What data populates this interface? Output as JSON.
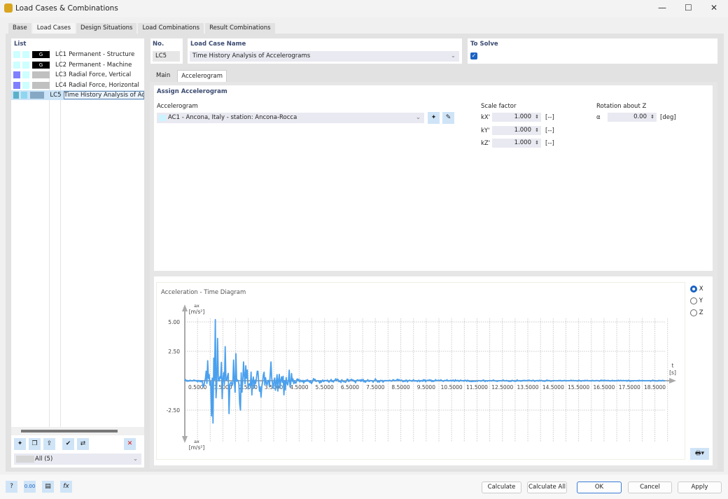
{
  "window": {
    "title": "Load Cases & Combinations"
  },
  "tabs": [
    "Base",
    "Load Cases",
    "Design Situations",
    "Load Combinations",
    "Result Combinations"
  ],
  "list": {
    "header": "List",
    "items": [
      {
        "id": "LC1",
        "name": "Permanent - Structure",
        "tag": "G",
        "c1": "#ccffff",
        "c2": "#ccffff",
        "c3": "#000000"
      },
      {
        "id": "LC2",
        "name": "Permanent - Machine",
        "tag": "G",
        "c1": "#ccffff",
        "c2": "#ccffff",
        "c3": "#000000"
      },
      {
        "id": "LC3",
        "name": "Radial Force, Vertical",
        "tag": "",
        "c1": "#8080ff",
        "c2": "#ccffff",
        "c3": "#c0c0c0"
      },
      {
        "id": "LC4",
        "name": "Radial Force, Horizontal",
        "tag": "",
        "c1": "#8080ff",
        "c2": "#ccffff",
        "c3": "#c0c0c0"
      },
      {
        "id": "LC5",
        "name": "Time History Analysis of Acceler",
        "tag": "",
        "c1": "#5bb0c8",
        "c2": "#8fd6f0",
        "c3": "#86a8c4"
      }
    ],
    "filter": "All (5)"
  },
  "no": {
    "label": "No.",
    "value": "LC5"
  },
  "name": {
    "label": "Load Case Name",
    "value": "Time History Analysis of Accelerograms"
  },
  "to_solve": {
    "label": "To Solve",
    "checked": true
  },
  "subtabs": [
    "Main",
    "Accelerogram"
  ],
  "assign": {
    "header": "Assign Accelerogram",
    "acc_label": "Accelerogram",
    "acc_value": "AC1 - Ancona, Italy - station: Ancona-Rocca",
    "scale_label": "Scale factor",
    "scale": [
      {
        "k": "kX'",
        "v": "1.000",
        "u": "[--]"
      },
      {
        "k": "kY'",
        "v": "1.000",
        "u": "[--]"
      },
      {
        "k": "kZ'",
        "v": "1.000",
        "u": "[--]"
      }
    ],
    "rot_label": "Rotation about Z",
    "rot_sym": "α",
    "rot_value": "0.00",
    "rot_unit": "[deg]"
  },
  "chart_data": {
    "type": "line",
    "title": "Acceleration - Time Diagram",
    "ylabel_sym": "ax",
    "ylabel_unit": "[m/s²]",
    "xlabel_sym": "t",
    "xlabel_unit": "[s]",
    "xlim": [
      0,
      19
    ],
    "ylim": [
      -3.8,
      5.5
    ],
    "xticks": [
      "0.5000",
      "1.5000",
      "2.5000",
      "3.5000",
      "4.5000",
      "5.5000",
      "6.5000",
      "7.5000",
      "8.5000",
      "9.5000",
      "10.5000",
      "11.5000",
      "12.5000",
      "13.5000",
      "14.5000",
      "15.5000",
      "16.5000",
      "17.5000",
      "18.5000"
    ],
    "yticks": [
      "5.00",
      "2.50",
      "-2.50"
    ],
    "grid": true,
    "color": "#4aa0ee",
    "peaks": [
      [
        0.9,
        1.7
      ],
      [
        1.05,
        -3.0
      ],
      [
        1.1,
        -3.6
      ],
      [
        1.3,
        3.6
      ],
      [
        1.2,
        5.2
      ],
      [
        1.6,
        2.9
      ],
      [
        1.75,
        -2.8
      ],
      [
        2.0,
        2.3
      ],
      [
        2.2,
        -2.5
      ],
      [
        2.3,
        1.6
      ],
      [
        3.4,
        1.6
      ],
      [
        3.0,
        -1.4
      ],
      [
        3.9,
        -1.2
      ],
      [
        4.1,
        0.9
      ]
    ]
  },
  "axis_radio": {
    "options": [
      "X",
      "Y",
      "Z"
    ],
    "selected": "X"
  },
  "buttons": {
    "calculate": "Calculate",
    "calculate_all": "Calculate All",
    "ok": "OK",
    "cancel": "Cancel",
    "apply": "Apply"
  }
}
